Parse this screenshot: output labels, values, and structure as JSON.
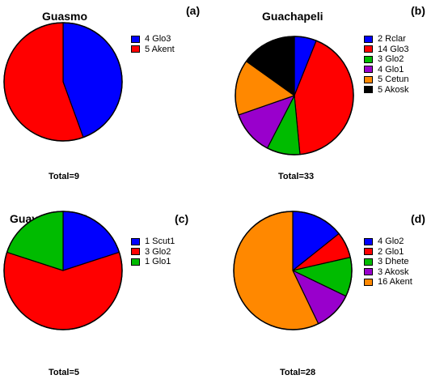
{
  "chart_data": [
    {
      "type": "pie",
      "title": "Guasmo",
      "panel_label": "(a)",
      "total_label": "Total=9",
      "slices": [
        {
          "label": "4 Glo3",
          "value": 4,
          "color": "#0000ff"
        },
        {
          "label": "5 Akent",
          "value": 5,
          "color": "#ff0000"
        }
      ]
    },
    {
      "type": "pie",
      "title": "Guachapeli",
      "panel_label": "(b)",
      "total_label": "Total=33",
      "slices": [
        {
          "label": "2 Rclar",
          "value": 2,
          "color": "#0000ff"
        },
        {
          "label": "14 Glo3",
          "value": 14,
          "color": "#ff0000"
        },
        {
          "label": "3 Glo2",
          "value": 3,
          "color": "#00bb00"
        },
        {
          "label": "4 Glo1",
          "value": 4,
          "color": "#9900cc"
        },
        {
          "label": "5 Cetun",
          "value": 5,
          "color": "#ff8800"
        },
        {
          "label": "5 Akosk",
          "value": 5,
          "color": "#000000"
        }
      ]
    },
    {
      "type": "pie",
      "title": "Guayabo de M.",
      "panel_label": "(c)",
      "total_label": "Total=5",
      "slices": [
        {
          "label": "1 Scut1",
          "value": 1,
          "color": "#0000ff"
        },
        {
          "label": "3 Glo2",
          "value": 3,
          "color": "#ff0000"
        },
        {
          "label": "1 Glo1",
          "value": 1,
          "color": "#00bb00"
        }
      ]
    },
    {
      "type": "pie",
      "title": "Guarumo",
      "panel_label": "(d)",
      "total_label": "Total=28",
      "slices": [
        {
          "label": "4 Glo2",
          "value": 4,
          "color": "#0000ff"
        },
        {
          "label": "2 Glo1",
          "value": 2,
          "color": "#ff0000"
        },
        {
          "label": "3 Dhete",
          "value": 3,
          "color": "#00bb00"
        },
        {
          "label": "3 Akosk",
          "value": 3,
          "color": "#9900cc"
        },
        {
          "label": "16 Akent",
          "value": 16,
          "color": "#ff8800"
        }
      ]
    }
  ]
}
